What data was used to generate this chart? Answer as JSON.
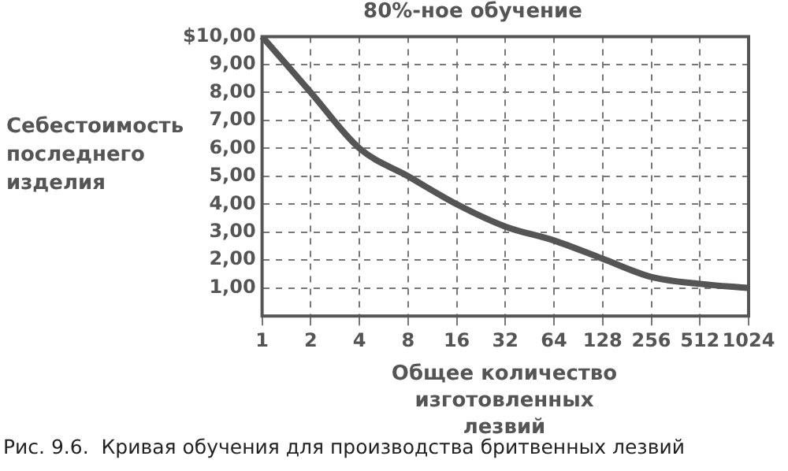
{
  "chart_data": {
    "type": "line",
    "title": "80%-ное обучение",
    "xlabel": "Общее количество изготовленных лезвий",
    "ylabel": "Себестоимость последнего изделия",
    "categories": [
      "1",
      "2",
      "4",
      "8",
      "16",
      "32",
      "64",
      "128",
      "256",
      "512",
      "1024"
    ],
    "values": [
      10.0,
      8.0,
      6.0,
      5.0,
      4.0,
      3.2,
      2.7,
      2.05,
      1.4,
      1.15,
      1.0
    ],
    "color": "#555555",
    "marker": "none",
    "line_style": "solid",
    "grid": true,
    "ylim": [
      0,
      10
    ],
    "yticks": [
      {
        "value": 1,
        "label": "1,00"
      },
      {
        "value": 2,
        "label": "2,00"
      },
      {
        "value": 3,
        "label": "3,00"
      },
      {
        "value": 4,
        "label": "4,00"
      },
      {
        "value": 5,
        "label": "5,00"
      },
      {
        "value": 6,
        "label": "6,00"
      },
      {
        "value": 7,
        "label": "7,00"
      },
      {
        "value": 8,
        "label": "8,00"
      },
      {
        "value": 9,
        "label": "9,00"
      },
      {
        "value": 10,
        "label": "$10,00"
      }
    ],
    "annotations": [
      "Рис. 9.6.  Кривая обучения для производства бритвенных лезвий"
    ]
  }
}
